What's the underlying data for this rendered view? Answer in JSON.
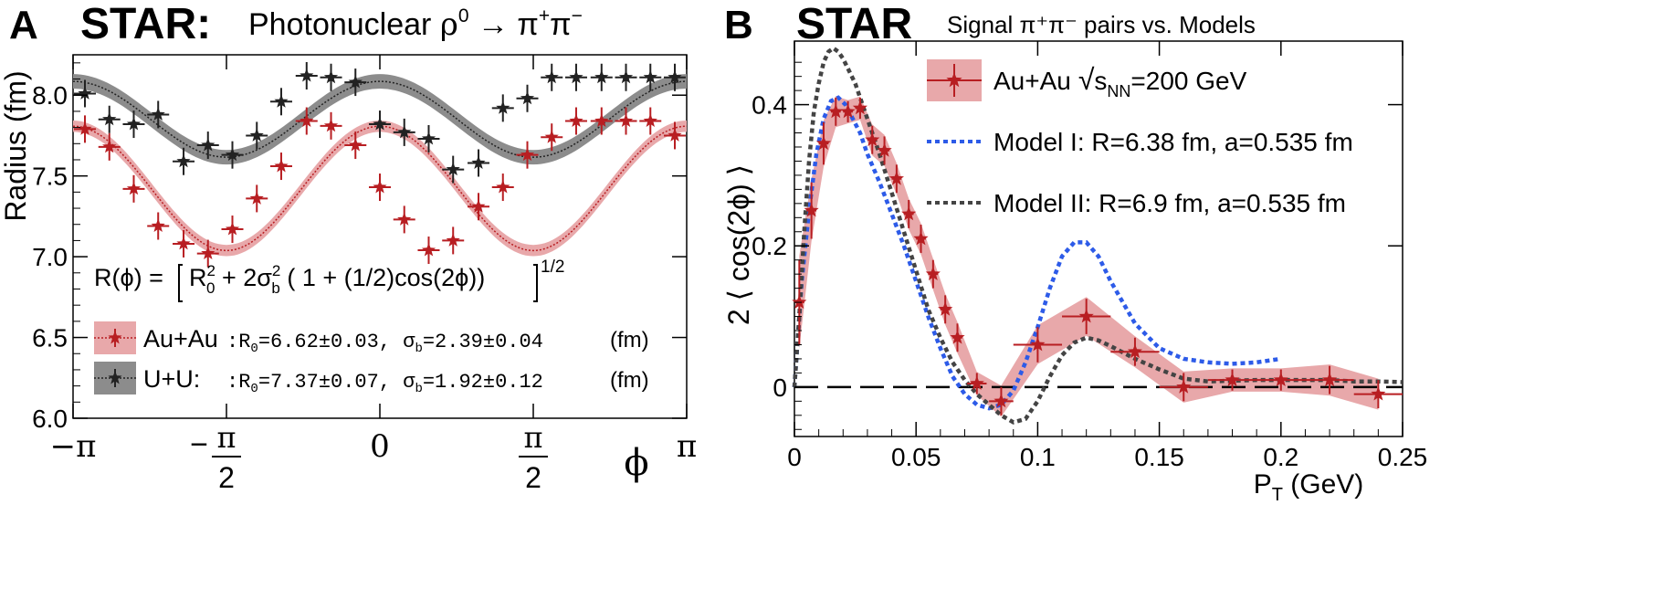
{
  "panels": {
    "a": {
      "letter": "A",
      "experiment": "STAR:",
      "title_prefix": "Photonuclear ",
      "title_rho": "ρ",
      "title_rho_sup": "0",
      "title_arrow": " → π",
      "title_plus": "+",
      "title_pi": "π",
      "title_minus": "−"
    },
    "b": {
      "letter": "B",
      "experiment": "STAR",
      "subtitle": "Signal π⁺π⁻ pairs vs. Models"
    }
  },
  "formula": {
    "lhs": "R(ϕ) = ",
    "r0": "R",
    "r0_sup": "2",
    "r0_sub": "0",
    "plus": " + 2σ",
    "sig_sup": "2",
    "sig_sub": "b",
    "tail": " ( 1 + (1/2)cos(2ϕ))",
    "power": "1/2"
  },
  "legend_a": {
    "auau_label": "Au+Au",
    "auau_params": ":R₀=6.62±0.03, σ_b=2.39±0.04",
    "auau_p1": ":R",
    "auau_p1_sub": "0",
    "auau_p2": "=6.62±0.03, σ",
    "auau_p2_sub": "b",
    "auau_p3": "=2.39±0.04",
    "uu_label": "U+U:",
    "uu_params": ":R₀=7.37±0.07, σ_b=1.92±0.12",
    "uu_p1": ":R",
    "uu_p1_sub": "0",
    "uu_p2": "=7.37±0.07, σ",
    "uu_p2_sub": "b",
    "uu_p3": "=1.92±0.12",
    "unit": "(fm)"
  },
  "legend_b": {
    "data_label": "Au+Au",
    "sqrt": "√",
    "s": "s",
    "nn": "NN",
    "energy": "=200 GeV",
    "model1": "Model I: R=6.38 fm, a=0.535 fm",
    "model2": "Model II: R=6.9 fm, a=0.535 fm"
  },
  "colors": {
    "auau": "#b81e22",
    "auau_band": "#e8a8aa",
    "uu": "#222222",
    "uu_band": "#8c8c8c",
    "model1": "#2d5be8",
    "model2": "#444444"
  },
  "chart_data": [
    {
      "type": "scatter",
      "panel": "A",
      "title": "STAR: Photonuclear ρ0 → π+π−",
      "xlabel": "ϕ",
      "ylabel": "Radius (fm)",
      "xlim": [
        -3.14159,
        3.14159
      ],
      "ylim": [
        6.0,
        8.25
      ],
      "x_ticks": [
        {
          "value": -3.14159,
          "label": "−π",
          "frac": false
        },
        {
          "value": -1.5708,
          "label": "−π/2",
          "num": "π",
          "den": "2",
          "frac": true,
          "neg": true
        },
        {
          "value": 0,
          "label": "0",
          "frac": false
        },
        {
          "value": 1.5708,
          "label": "π/2",
          "num": "π",
          "den": "2",
          "frac": true,
          "neg": false
        },
        {
          "value": 3.14159,
          "label": "π",
          "frac": false
        }
      ],
      "y_ticks": [
        {
          "value": 6.0,
          "label": "6.0"
        },
        {
          "value": 6.5,
          "label": "6.5"
        },
        {
          "value": 7.0,
          "label": "7.0"
        },
        {
          "value": 7.5,
          "label": "7.5"
        },
        {
          "value": 8.0,
          "label": "8.0"
        }
      ],
      "series": [
        {
          "name": "Au+Au",
          "fit": {
            "R0": 6.62,
            "sigma_b": 2.39
          },
          "x": [
            -3.02,
            -2.77,
            -2.52,
            -2.27,
            -2.01,
            -1.76,
            -1.51,
            -1.26,
            -1.01,
            -0.75,
            -0.5,
            -0.25,
            0.0,
            0.25,
            0.5,
            0.75,
            1.01,
            1.26,
            1.51,
            1.76,
            2.01,
            2.27,
            2.52,
            2.77,
            3.02
          ],
          "y": [
            7.79,
            7.68,
            7.42,
            7.19,
            7.08,
            7.02,
            7.17,
            7.36,
            7.56,
            7.84,
            7.81,
            7.69,
            7.43,
            7.23,
            7.04,
            7.1,
            7.31,
            7.43,
            7.63,
            7.74,
            7.84,
            7.84,
            7.84,
            7.84,
            7.75
          ]
        },
        {
          "name": "U+U",
          "fit": {
            "R0": 7.37,
            "sigma_b": 1.92
          },
          "x": [
            -3.02,
            -2.77,
            -2.52,
            -2.27,
            -2.01,
            -1.76,
            -1.51,
            -1.26,
            -1.01,
            -0.75,
            -0.5,
            -0.25,
            0.0,
            0.25,
            0.5,
            0.75,
            1.01,
            1.26,
            1.51,
            1.76,
            2.01,
            2.27,
            2.52,
            2.77,
            3.02
          ],
          "y": [
            8.01,
            7.85,
            7.82,
            7.88,
            7.59,
            7.69,
            7.63,
            7.75,
            7.96,
            8.12,
            8.11,
            8.08,
            7.82,
            7.77,
            7.73,
            7.54,
            7.58,
            7.92,
            7.98,
            8.11,
            8.11,
            8.11,
            8.11,
            8.11,
            8.11
          ]
        }
      ]
    },
    {
      "type": "line",
      "panel": "B",
      "title": "STAR Signal π⁺π⁻ pairs vs. Models",
      "xlabel": "P_T (GeV)",
      "ylabel": "2 ⟨ cos(2ϕ) ⟩",
      "xlim": [
        0,
        0.25
      ],
      "ylim": [
        -0.07,
        0.49
      ],
      "x_ticks": [
        {
          "value": 0,
          "label": "0"
        },
        {
          "value": 0.05,
          "label": "0.05"
        },
        {
          "value": 0.1,
          "label": "0.1"
        },
        {
          "value": 0.15,
          "label": "0.15"
        },
        {
          "value": 0.2,
          "label": "0.2"
        },
        {
          "value": 0.25,
          "label": "0.25"
        }
      ],
      "y_ticks": [
        {
          "value": 0,
          "label": "0"
        },
        {
          "value": 0.2,
          "label": "0.2"
        },
        {
          "value": 0.4,
          "label": "0.4"
        }
      ],
      "data": {
        "name": "Au+Au √sNN=200 GeV",
        "x": [
          0.002,
          0.007,
          0.012,
          0.017,
          0.022,
          0.027,
          0.032,
          0.037,
          0.042,
          0.047,
          0.052,
          0.057,
          0.062,
          0.067,
          0.075,
          0.085,
          0.1,
          0.12,
          0.14,
          0.16,
          0.18,
          0.2,
          0.22,
          0.24
        ],
        "y": [
          0.12,
          0.25,
          0.345,
          0.39,
          0.39,
          0.395,
          0.35,
          0.335,
          0.295,
          0.245,
          0.21,
          0.16,
          0.11,
          0.07,
          0.005,
          -0.02,
          0.06,
          0.1,
          0.05,
          0.0,
          0.01,
          0.01,
          0.01,
          -0.01
        ],
        "xerr": [
          0.002,
          0.002,
          0.002,
          0.002,
          0.002,
          0.002,
          0.002,
          0.002,
          0.002,
          0.002,
          0.002,
          0.002,
          0.002,
          0.002,
          0.004,
          0.005,
          0.01,
          0.01,
          0.01,
          0.01,
          0.01,
          0.01,
          0.01,
          0.01
        ],
        "yerr": [
          0.06,
          0.04,
          0.03,
          0.02,
          0.015,
          0.015,
          0.02,
          0.02,
          0.02,
          0.02,
          0.02,
          0.02,
          0.02,
          0.02,
          0.015,
          0.02,
          0.025,
          0.025,
          0.02,
          0.02,
          0.015,
          0.015,
          0.02,
          0.02
        ]
      },
      "model1": {
        "name": "Model I: R=6.38 fm, a=0.535 fm",
        "x": [
          0.0,
          0.003,
          0.006,
          0.009,
          0.012,
          0.015,
          0.018,
          0.021,
          0.024,
          0.027,
          0.03,
          0.035,
          0.04,
          0.045,
          0.05,
          0.055,
          0.06,
          0.065,
          0.07,
          0.075,
          0.08,
          0.085,
          0.09,
          0.095,
          0.1,
          0.105,
          0.11,
          0.115,
          0.12,
          0.125,
          0.13,
          0.14,
          0.15,
          0.16,
          0.17,
          0.18,
          0.19,
          0.2
        ],
        "y": [
          0.0,
          0.15,
          0.25,
          0.33,
          0.38,
          0.405,
          0.41,
          0.4,
          0.38,
          0.36,
          0.33,
          0.29,
          0.245,
          0.2,
          0.15,
          0.1,
          0.055,
          0.015,
          -0.01,
          -0.025,
          -0.03,
          -0.025,
          -0.005,
          0.035,
          0.085,
          0.14,
          0.185,
          0.205,
          0.205,
          0.185,
          0.15,
          0.09,
          0.055,
          0.04,
          0.035,
          0.033,
          0.035,
          0.04
        ]
      },
      "model2": {
        "name": "Model II: R=6.9 fm, a=0.535 fm",
        "x": [
          0.0,
          0.002,
          0.004,
          0.006,
          0.008,
          0.01,
          0.012,
          0.014,
          0.016,
          0.018,
          0.02,
          0.025,
          0.03,
          0.035,
          0.04,
          0.045,
          0.05,
          0.055,
          0.06,
          0.065,
          0.07,
          0.075,
          0.08,
          0.085,
          0.09,
          0.095,
          0.1,
          0.105,
          0.11,
          0.115,
          0.12,
          0.125,
          0.13,
          0.14,
          0.15,
          0.16,
          0.17,
          0.18,
          0.19,
          0.2,
          0.21,
          0.22,
          0.23,
          0.24,
          0.25
        ],
        "y": [
          0.0,
          0.1,
          0.22,
          0.32,
          0.39,
          0.43,
          0.46,
          0.475,
          0.48,
          0.475,
          0.465,
          0.43,
          0.38,
          0.33,
          0.275,
          0.22,
          0.165,
          0.11,
          0.07,
          0.035,
          0.01,
          -0.01,
          -0.025,
          -0.04,
          -0.05,
          -0.045,
          -0.02,
          0.015,
          0.045,
          0.063,
          0.07,
          0.066,
          0.058,
          0.04,
          0.025,
          0.012,
          0.008,
          0.009,
          0.01,
          0.01,
          0.01,
          0.01,
          0.008,
          0.008,
          0.007
        ]
      },
      "reference_line": {
        "y": 0,
        "style": "long-dash"
      }
    }
  ]
}
